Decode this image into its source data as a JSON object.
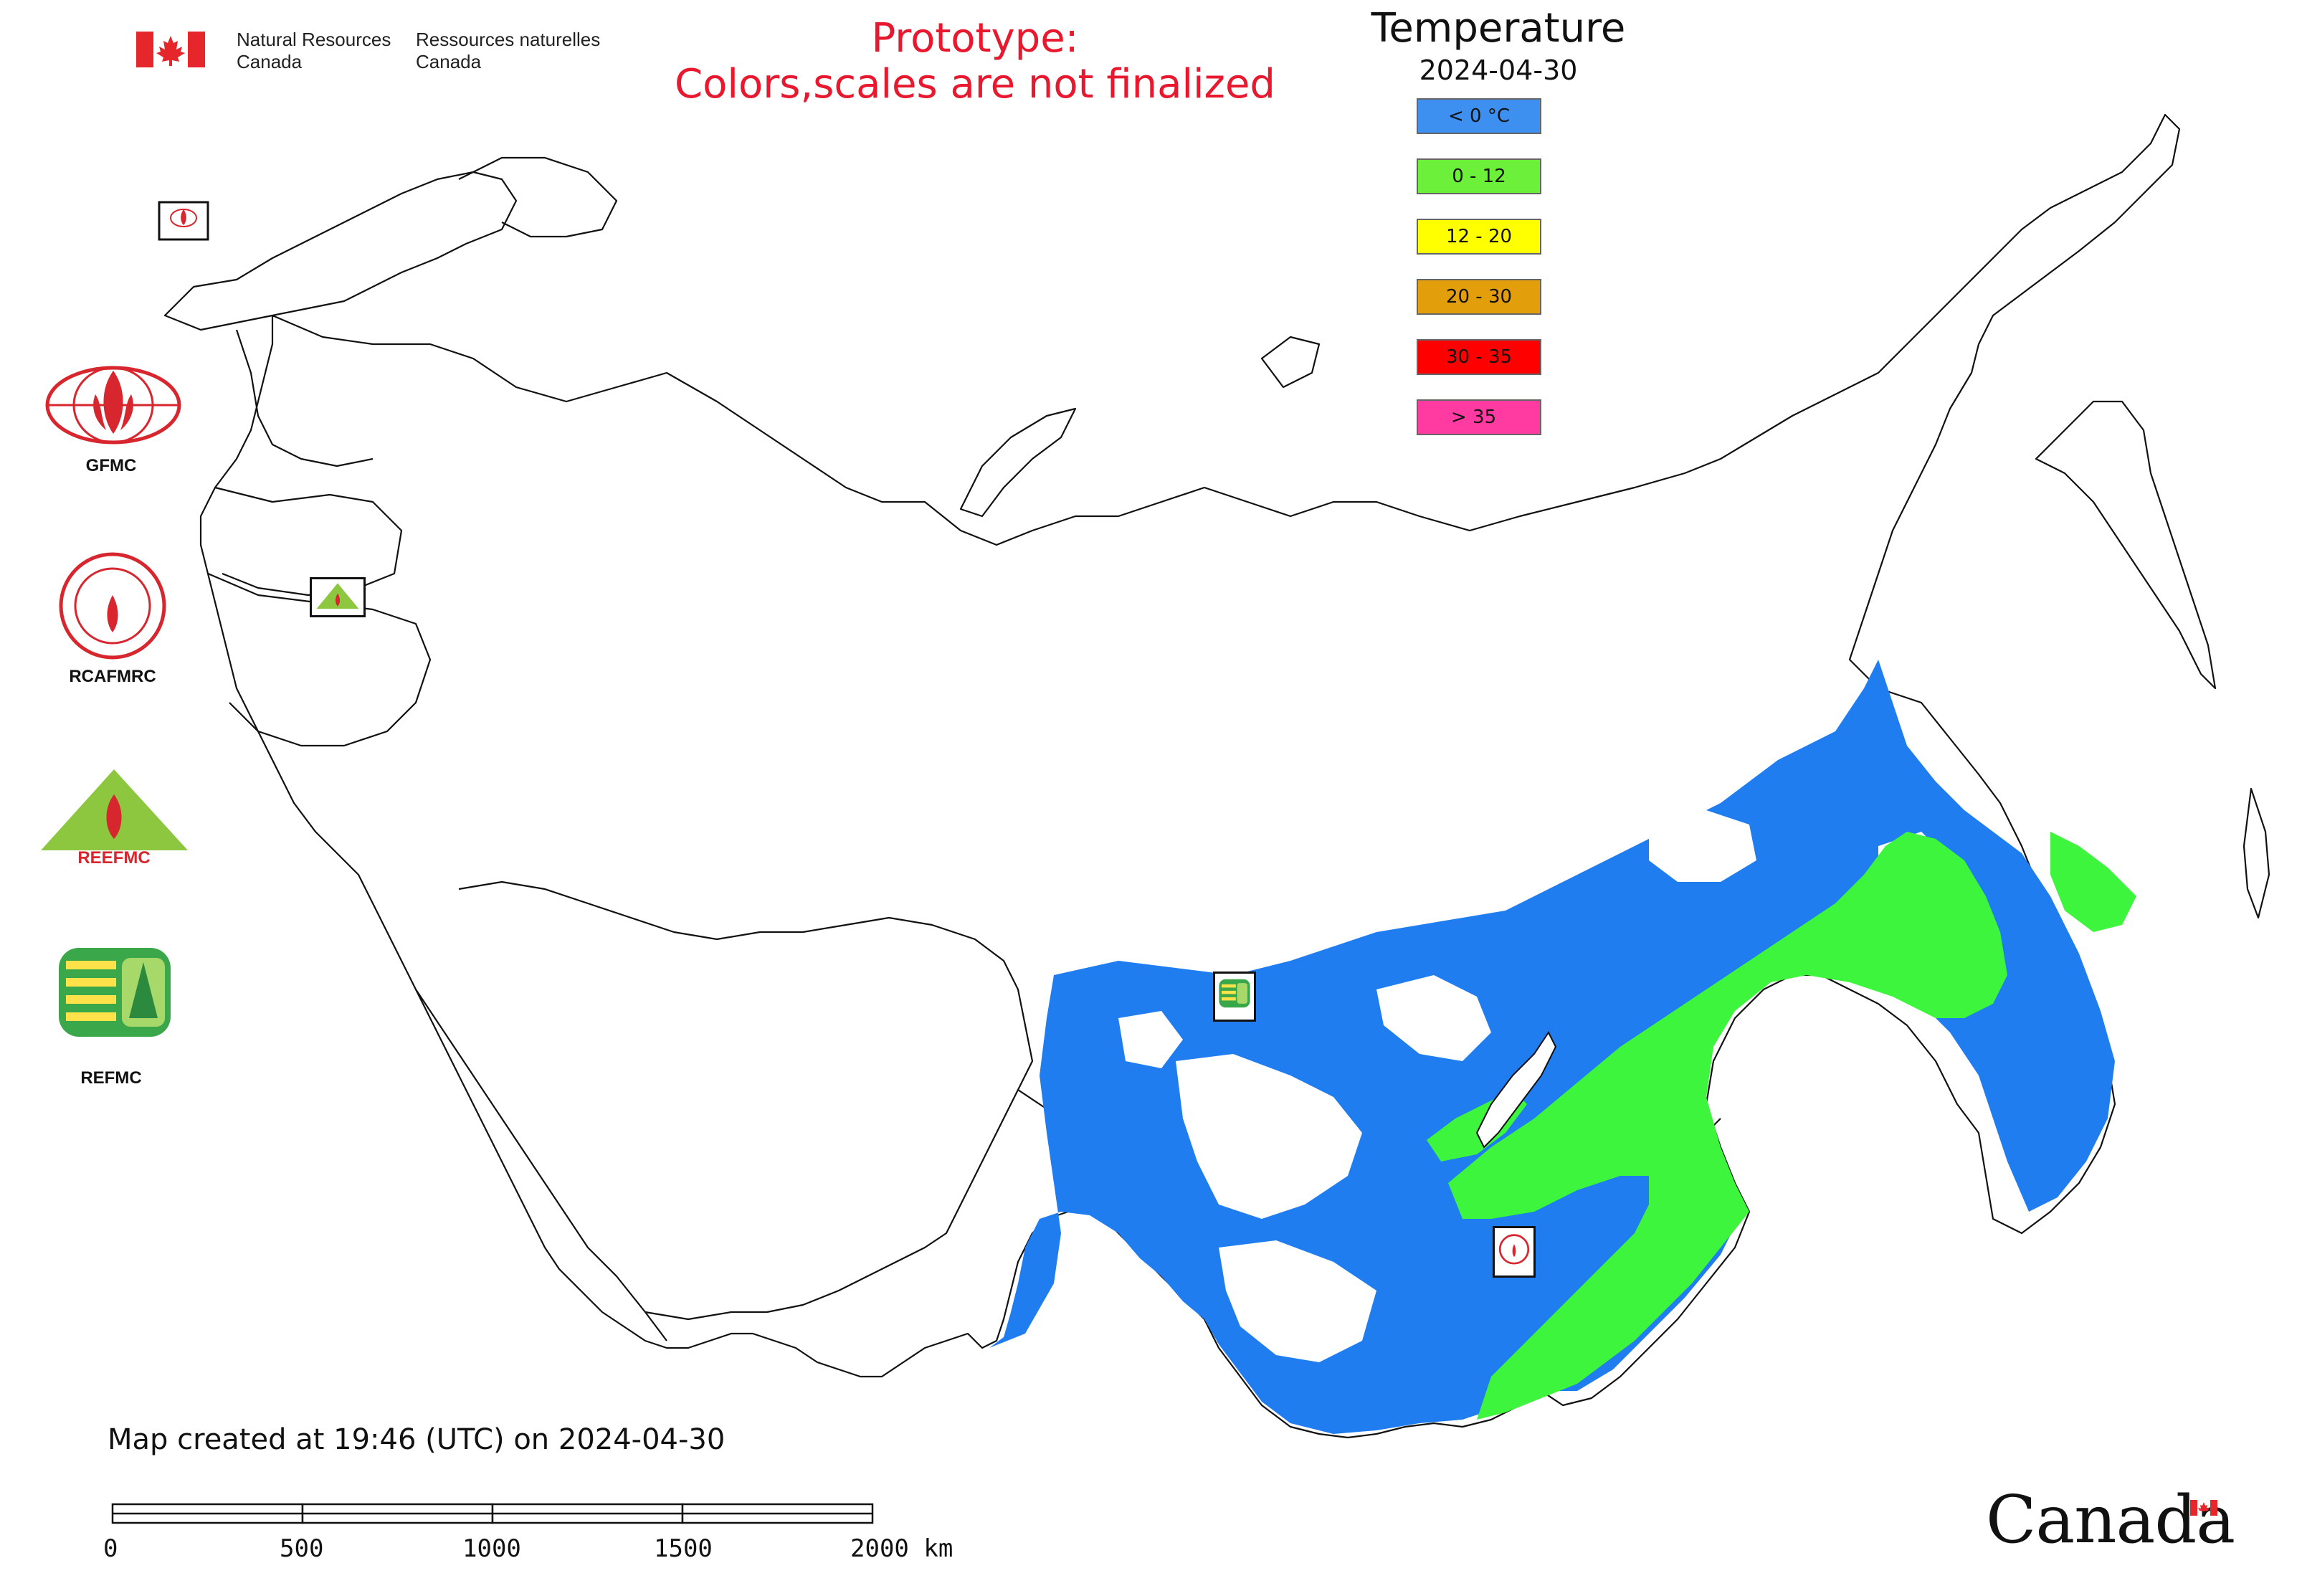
{
  "header": {
    "department_en_line1": "Natural Resources",
    "department_en_line2": "Canada",
    "department_fr_line1": "Ressources naturelles",
    "department_fr_line2": "Canada"
  },
  "notice": {
    "line1": "Prototype:",
    "line2": "Colors,scales are not finalized"
  },
  "legend": {
    "title": "Temperature",
    "date": "2024-04-30",
    "items": [
      {
        "label": "< 0 °C",
        "color": "#3d8ff0"
      },
      {
        "label": "0 - 12",
        "color": "#6cf03a"
      },
      {
        "label": "12 - 20",
        "color": "#ffff00"
      },
      {
        "label": "20 - 30",
        "color": "#e39e0c"
      },
      {
        "label": "30 - 35",
        "color": "#ff0000"
      },
      {
        "label": "> 35",
        "color": "#ff3aa0"
      }
    ]
  },
  "logos": {
    "gfmc": "GFMC",
    "rcafmrc": "RCAFMRC",
    "reefmc": "REEFMC",
    "refmc": "REFMC"
  },
  "footer": {
    "created": "Map created at 19:46 (UTC) on 2024-04-30",
    "scale_labels": [
      "0",
      "500",
      "1000",
      "1500",
      "2000 km"
    ],
    "canada_wordmark": "Canada"
  },
  "map_colors": {
    "below_zero": "#1f7df0",
    "zero_to_twelve": "#3cf53c",
    "outline": "#111111"
  }
}
